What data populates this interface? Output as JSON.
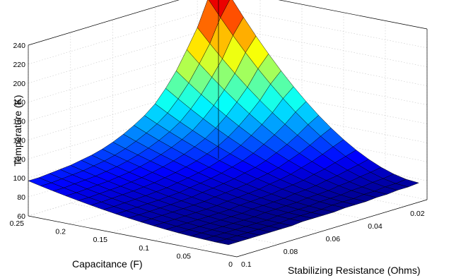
{
  "chart_data": {
    "type": "surface",
    "xlabel": "Stabilizing Resistance (Ohms)",
    "ylabel": "Capacitance (F)",
    "zlabel": "Temperature (K)",
    "x_ticks": [
      "0.02",
      "0.04",
      "0.06",
      "0.08",
      "0.1"
    ],
    "y_ticks": [
      "0",
      "0.05",
      "0.1",
      "0.15",
      "0.2",
      "0.25"
    ],
    "z_ticks": [
      "60",
      "80",
      "100",
      "120",
      "140",
      "160",
      "180",
      "200",
      "220",
      "240"
    ],
    "xlim": [
      0.01,
      0.1
    ],
    "ylim": [
      0,
      0.25
    ],
    "zlim": [
      60,
      240
    ],
    "grid": true,
    "colormap": "jet",
    "R_values": [
      0.01,
      0.015,
      0.02,
      0.025,
      0.03,
      0.035,
      0.04,
      0.045,
      0.05,
      0.055,
      0.06,
      0.065,
      0.07,
      0.075,
      0.08,
      0.085,
      0.09,
      0.095,
      0.1
    ],
    "C_values": [
      0.01,
      0.025,
      0.04,
      0.055,
      0.07,
      0.085,
      0.1,
      0.115,
      0.13,
      0.145,
      0.16,
      0.175,
      0.19,
      0.205,
      0.22,
      0.235,
      0.25
    ],
    "temperature_at_C_0_25": [
      252,
      232,
      205,
      185,
      166,
      151,
      138,
      129,
      122,
      116,
      111,
      107,
      104,
      102,
      100,
      99,
      98,
      97,
      97
    ],
    "temperature_at_C_0_01": [
      76,
      75,
      75,
      74,
      74,
      73,
      73,
      73,
      72,
      72,
      72,
      72,
      71,
      71,
      71,
      71,
      71,
      71,
      71
    ]
  }
}
